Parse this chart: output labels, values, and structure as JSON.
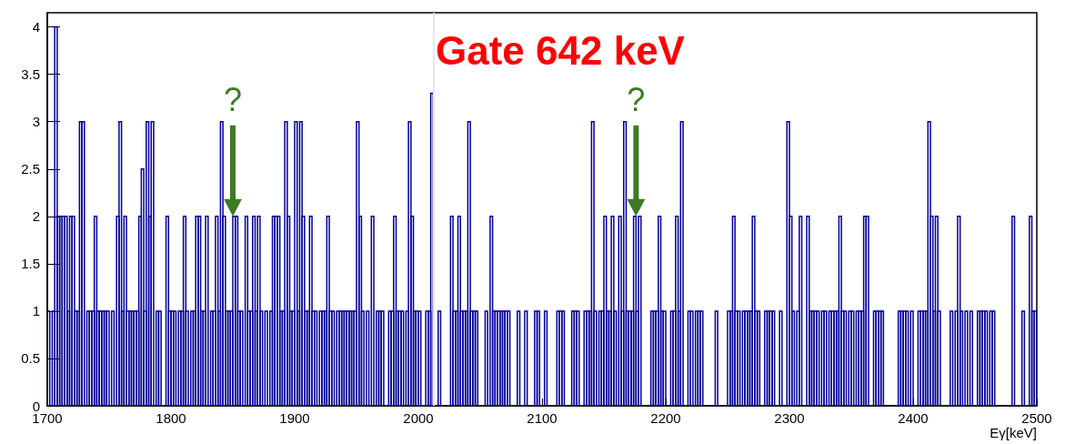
{
  "chart_data": {
    "type": "histogram",
    "title": "Gate 642 keV",
    "xlabel": "Eγ[keV]",
    "xlim": [
      1700,
      2500
    ],
    "xticks": [
      1700,
      1800,
      1900,
      2000,
      2100,
      2200,
      2300,
      2400,
      2500
    ],
    "ylim": [
      0,
      4.15
    ],
    "yticks": [
      0,
      0.5,
      1,
      1.5,
      2,
      2.5,
      3,
      3.5,
      4
    ],
    "grid": false,
    "color": "#000099",
    "bins": [
      1700,
      1702,
      1704,
      1706,
      1708,
      1710,
      1712,
      1714,
      1716,
      1718,
      1720,
      1722,
      1724,
      1726,
      1728,
      1730,
      1732,
      1734,
      1736,
      1738,
      1740,
      1742,
      1744,
      1746,
      1748,
      1750,
      1752,
      1754,
      1756,
      1758,
      1760,
      1762,
      1764,
      1766,
      1768,
      1770,
      1772,
      1774,
      1776,
      1778,
      1780,
      1782,
      1784,
      1786,
      1788,
      1790,
      1792,
      1794,
      1796,
      1798,
      1800,
      1802,
      1804,
      1806,
      1808,
      1810,
      1812,
      1814,
      1816,
      1818,
      1820,
      1822,
      1824,
      1826,
      1828,
      1830,
      1832,
      1834,
      1836,
      1838,
      1840,
      1842,
      1844,
      1846,
      1848,
      1850,
      1852,
      1854,
      1856,
      1858,
      1860,
      1862,
      1864,
      1866,
      1868,
      1870,
      1872,
      1874,
      1876,
      1878,
      1880,
      1882,
      1884,
      1886,
      1888,
      1890,
      1892,
      1894,
      1896,
      1898,
      1900,
      1902,
      1904,
      1906,
      1908,
      1910,
      1912,
      1914,
      1916,
      1918,
      1920,
      1922,
      1924,
      1926,
      1928,
      1930,
      1932,
      1934,
      1936,
      1938,
      1940,
      1942,
      1944,
      1946,
      1948,
      1950,
      1952,
      1954,
      1956,
      1958,
      1960,
      1962,
      1964,
      1966,
      1968,
      1970,
      1972,
      1974,
      1976,
      1978,
      1980,
      1982,
      1984,
      1986,
      1988,
      1990,
      1992,
      1994,
      1996,
      1998,
      2000,
      2002,
      2004,
      2006,
      2008,
      2010,
      2012,
      2014,
      2016,
      2018,
      2020,
      2022,
      2024,
      2026,
      2028,
      2030,
      2032,
      2034,
      2036,
      2038,
      2040,
      2042,
      2044,
      2046,
      2048,
      2050,
      2052,
      2054,
      2056,
      2058,
      2060,
      2062,
      2064,
      2066,
      2068,
      2070,
      2072,
      2074,
      2076,
      2078,
      2080,
      2082,
      2084,
      2086,
      2088,
      2090,
      2092,
      2094,
      2096,
      2098,
      2100,
      2102,
      2104,
      2106,
      2108,
      2110,
      2112,
      2114,
      2116,
      2118,
      2120,
      2122,
      2124,
      2126,
      2128,
      2130,
      2132,
      2134,
      2136,
      2138,
      2140,
      2142,
      2144,
      2146,
      2148,
      2150,
      2152,
      2154,
      2156,
      2158,
      2160,
      2162,
      2164,
      2166,
      2168,
      2170,
      2172,
      2174,
      2176,
      2178,
      2180,
      2182,
      2184,
      2186,
      2188,
      2190,
      2192,
      2194,
      2196,
      2198,
      2200,
      2202,
      2204,
      2206,
      2208,
      2210,
      2212,
      2214,
      2216,
      2218,
      2220,
      2222,
      2224,
      2226,
      2228,
      2230,
      2232,
      2234,
      2236,
      2238,
      2240,
      2242,
      2244,
      2246,
      2248,
      2250,
      2252,
      2254,
      2256,
      2258,
      2260,
      2262,
      2264,
      2266,
      2268,
      2270,
      2272,
      2274,
      2276,
      2278,
      2280,
      2282,
      2284,
      2286,
      2288,
      2290,
      2292,
      2294,
      2296,
      2298,
      2300,
      2302,
      2304,
      2306,
      2308,
      2310,
      2312,
      2314,
      2316,
      2318,
      2320,
      2322,
      2324,
      2326,
      2328,
      2330,
      2332,
      2334,
      2336,
      2338,
      2340,
      2342,
      2344,
      2346,
      2348,
      2350,
      2352,
      2354,
      2356,
      2358,
      2360,
      2362,
      2364,
      2366,
      2368,
      2370,
      2372,
      2374,
      2376,
      2378,
      2380,
      2382,
      2384,
      2386,
      2388,
      2390,
      2392,
      2394,
      2396,
      2398,
      2400,
      2402,
      2404,
      2406,
      2408,
      2410,
      2412,
      2414,
      2416,
      2418,
      2420,
      2422,
      2424,
      2426,
      2428,
      2430,
      2432,
      2434,
      2436,
      2438,
      2440,
      2442,
      2444,
      2446,
      2448,
      2450,
      2452,
      2454,
      2456,
      2458,
      2460,
      2462,
      2464,
      2466,
      2468,
      2470,
      2472,
      2474,
      2476,
      2478,
      2480,
      2482,
      2484,
      2486,
      2488,
      2490,
      2492,
      2494,
      2496,
      2498,
      2500
    ],
    "values": [
      1,
      0,
      1,
      4,
      2,
      2,
      2,
      2,
      1,
      2,
      2,
      1,
      1,
      3,
      3,
      0,
      1,
      1,
      1,
      2,
      1,
      1,
      1,
      1,
      1,
      0,
      1,
      0,
      2,
      3,
      1,
      2,
      1,
      1,
      1,
      1,
      1,
      2,
      2.5,
      1,
      3,
      2,
      3,
      0,
      1,
      1,
      0,
      0,
      2,
      1,
      1,
      1,
      0,
      1,
      1,
      2,
      1,
      0,
      1,
      1,
      2,
      2,
      1,
      1,
      2,
      0,
      1,
      1,
      2,
      1,
      3,
      2,
      1,
      1,
      1,
      2,
      2,
      1,
      1,
      0,
      2,
      1,
      1,
      2,
      1,
      2,
      1,
      0,
      1,
      0,
      1,
      2,
      2,
      2,
      1,
      1,
      3,
      2,
      1,
      1,
      3,
      1,
      3,
      2,
      1,
      1,
      2,
      1,
      1,
      0,
      1,
      1,
      1,
      2,
      1,
      1,
      0,
      1,
      1,
      1,
      1,
      1,
      1,
      1,
      1,
      3,
      2,
      1,
      0,
      1,
      0,
      2,
      0,
      1,
      1,
      1,
      0,
      0,
      1,
      1,
      2,
      1,
      1,
      1,
      0,
      1,
      3,
      2,
      1,
      1,
      1,
      0,
      0,
      1,
      1,
      3.3,
      0,
      0,
      1,
      0,
      0,
      0,
      0,
      2,
      1,
      1,
      2,
      1,
      1,
      1,
      3,
      1,
      1,
      1,
      0,
      0,
      0,
      1,
      0,
      2,
      1,
      1,
      1,
      1,
      1,
      1,
      1,
      0,
      0,
      0,
      1,
      0,
      0,
      1,
      0,
      0,
      0,
      1,
      1,
      0,
      0,
      1,
      0,
      0,
      0,
      0,
      1,
      1,
      1,
      0,
      0,
      0,
      1,
      1,
      1,
      0,
      0,
      1,
      1,
      1,
      3,
      1,
      0,
      1,
      1,
      2,
      1,
      1,
      2,
      1,
      0,
      2,
      1,
      3,
      1,
      1,
      1,
      2,
      1,
      2,
      0,
      0,
      0,
      0,
      1,
      1,
      1,
      2,
      1,
      1,
      0,
      0,
      1,
      1,
      2,
      1,
      3,
      0,
      0,
      1,
      1,
      0,
      1,
      1,
      1,
      0,
      0,
      0,
      0,
      0,
      1,
      0,
      0,
      0,
      0,
      1,
      1,
      2,
      1,
      1,
      0,
      1,
      1,
      1,
      1,
      2,
      1,
      1,
      0,
      0,
      1,
      1,
      1,
      1,
      0,
      0,
      1,
      0,
      0,
      3,
      2,
      1,
      0,
      1,
      2,
      0,
      0,
      2,
      1,
      1,
      1,
      1,
      0,
      1,
      1,
      0,
      1,
      1,
      1,
      1,
      2,
      1,
      1,
      0,
      1,
      1,
      0,
      1,
      1,
      1,
      2,
      2,
      0,
      0,
      1,
      1,
      1,
      1,
      0,
      0,
      0,
      0,
      0,
      0,
      1,
      1,
      1,
      1,
      0,
      1,
      0,
      0,
      1,
      1,
      1,
      1,
      3,
      2,
      1,
      2,
      1,
      0,
      0,
      0,
      0,
      1,
      0,
      1,
      2,
      1,
      0,
      1,
      0,
      1,
      0,
      0,
      1,
      1,
      1,
      1,
      0,
      1,
      1,
      0,
      0,
      0,
      0,
      0,
      0,
      0,
      2,
      0,
      0,
      0,
      1,
      0,
      0,
      2,
      1,
      1
    ],
    "ref_lines": [
      {
        "axis": "x",
        "value": 2012,
        "color": "#e6e6fa"
      }
    ],
    "annotations": [
      {
        "text": "?",
        "x": 1850,
        "y": 2
      },
      {
        "text": "?",
        "x": 2176,
        "y": 2
      }
    ]
  }
}
